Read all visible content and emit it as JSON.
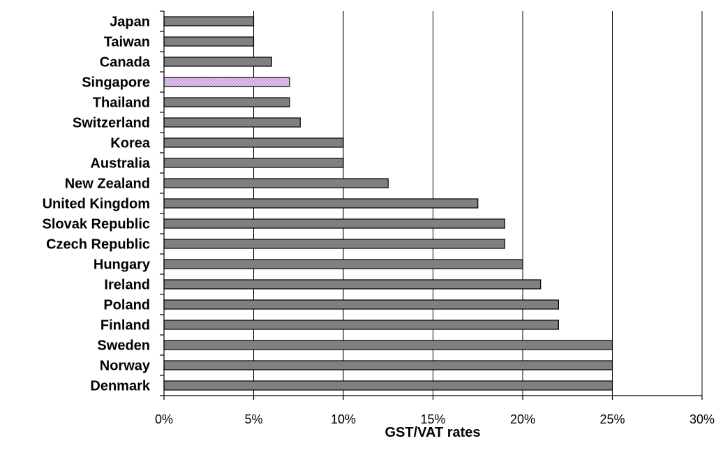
{
  "chart_data": {
    "type": "bar",
    "orientation": "horizontal",
    "categories": [
      "Japan",
      "Taiwan",
      "Canada",
      "Singapore",
      "Thailand",
      "Switzerland",
      "Korea",
      "Australia",
      "New Zealand",
      "United Kingdom",
      "Slovak Republic",
      "Czech Republic",
      "Hungary",
      "Ireland",
      "Poland",
      "Finland",
      "Sweden",
      "Norway",
      "Denmark"
    ],
    "values": [
      5,
      5,
      6,
      7,
      7,
      7.6,
      10,
      10,
      12.5,
      17.5,
      19,
      19,
      20,
      21,
      22,
      22,
      25,
      25,
      25
    ],
    "highlight": "Singapore",
    "xlabel": "GST/VAT rates",
    "xlim": [
      0,
      30
    ],
    "xticks": [
      0,
      5,
      10,
      15,
      20,
      25,
      30
    ],
    "xtick_labels": [
      "0%",
      "5%",
      "10%",
      "15%",
      "20%",
      "25%",
      "30%"
    ],
    "grid": "vertical",
    "legend": "none",
    "colors": {
      "bar": "#808080",
      "highlight": "#e6c8f0",
      "highlight_dots": "#9b6fb0",
      "gridline": "#000000"
    }
  }
}
